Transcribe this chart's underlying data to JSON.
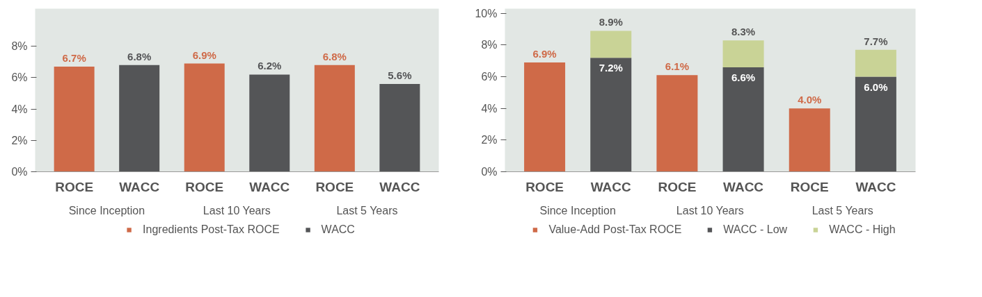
{
  "chart_data": [
    {
      "type": "bar",
      "categories": [
        "ROCE",
        "WACC",
        "ROCE",
        "WACC",
        "ROCE",
        "WACC"
      ],
      "series": [
        {
          "name": "Ingredients Post-Tax ROCE",
          "color": "#cf6a48",
          "values": [
            6.7,
            null,
            6.9,
            null,
            6.8,
            null
          ],
          "value_labels": [
            "6.7%",
            null,
            "6.9%",
            null,
            "6.8%",
            null
          ]
        },
        {
          "name": "WACC",
          "color": "#545557",
          "values": [
            null,
            6.8,
            null,
            6.2,
            null,
            5.6
          ],
          "value_labels": [
            null,
            "6.8%",
            null,
            "6.2%",
            null,
            "5.6%"
          ]
        }
      ],
      "annotations": [
        "Since Inception",
        "Last 10 Years",
        "Last 5 Years"
      ],
      "ylim": [
        0,
        10.4
      ],
      "yticks": [
        {
          "value": 0,
          "label": "0%"
        },
        {
          "value": 2,
          "label": "2%"
        },
        {
          "value": 4,
          "label": "4%"
        },
        {
          "value": 6,
          "label": "6%"
        },
        {
          "value": 8,
          "label": "8%"
        }
      ],
      "legend": "bottom"
    },
    {
      "type": "bar",
      "categories": [
        "ROCE",
        "WACC",
        "ROCE",
        "WACC",
        "ROCE",
        "WACC"
      ],
      "series": [
        {
          "name": "Value-Add Post-Tax ROCE",
          "color": "#cf6a48",
          "values": [
            6.9,
            null,
            6.1,
            null,
            4.0,
            null
          ],
          "value_labels": [
            "6.9%",
            null,
            "6.1%",
            null,
            "4.0%",
            null
          ]
        },
        {
          "name": "WACC - Low",
          "color": "#545557",
          "values": [
            null,
            7.2,
            null,
            6.6,
            null,
            6.0
          ],
          "value_labels": [
            null,
            "7.2%",
            null,
            "6.6%",
            null,
            "6.0%"
          ]
        },
        {
          "name": "WACC - High",
          "color": "#c9d396",
          "values": [
            null,
            1.7,
            null,
            1.7,
            null,
            1.7
          ]
        }
      ],
      "stacked": true,
      "totals": [
        null,
        "8.9%",
        null,
        "8.3%",
        null,
        "7.7%"
      ],
      "annotations": [
        "Since Inception",
        "Last 10 Years",
        "Last 5 Years"
      ],
      "ylim": [
        0,
        10.3
      ],
      "yticks": [
        {
          "value": 0,
          "label": "0%"
        },
        {
          "value": 2,
          "label": "2%"
        },
        {
          "value": 4,
          "label": "4%"
        },
        {
          "value": 6,
          "label": "6%"
        },
        {
          "value": 8,
          "label": "8%"
        },
        {
          "value": 10,
          "label": "10%"
        }
      ],
      "legend": "bottom"
    }
  ]
}
